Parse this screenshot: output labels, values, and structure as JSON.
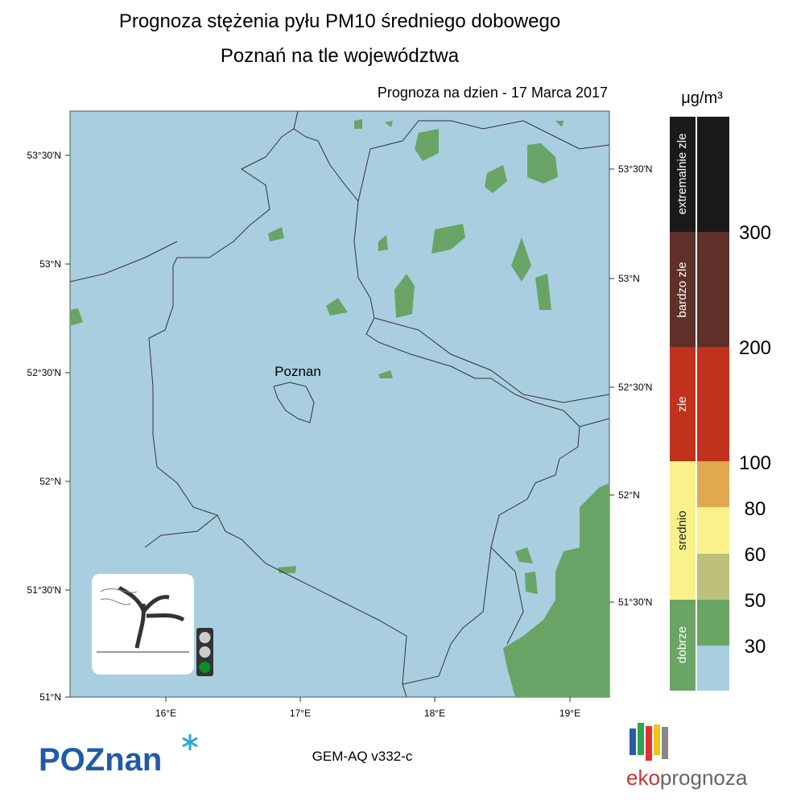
{
  "header": {
    "title": "Prognoza stężenia pyłu PM10 średniego dobowego",
    "subtitle": "Poznań na tle województwa",
    "date_label": "Prognoza na dzien -  17 Marca 2017"
  },
  "map": {
    "place_label": "Poznan",
    "lat_ticks_left": [
      "53°30'N",
      "53°N",
      "52°30'N",
      "52°N",
      "51°30'N",
      "51°N"
    ],
    "lat_ticks_right": [
      "53°30'N",
      "53°N",
      "52°30'N",
      "52°N",
      "51°30'N"
    ],
    "lon_ticks": [
      "16°E",
      "17°E",
      "18°E",
      "19°E"
    ]
  },
  "legend": {
    "unit": "μg/m³",
    "categories": [
      "extremalnie zle",
      "bardzo zle",
      "zle",
      "srednio",
      "dobrze"
    ],
    "thresholds": [
      300,
      200,
      100,
      80,
      60,
      50,
      30
    ]
  },
  "footer": {
    "logo_left": "POZnan",
    "model": "GEM-AQ v332-c",
    "logo_right_a": "eko",
    "logo_right_b": "prognoza"
  }
}
